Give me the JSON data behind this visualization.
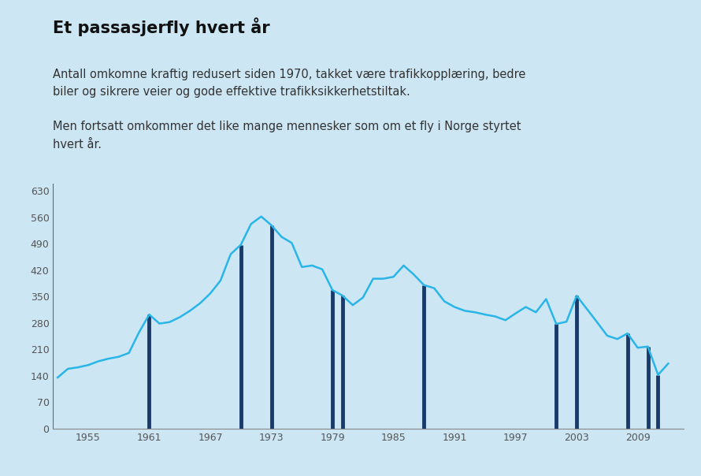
{
  "title": "Et passasjerfly hvert år",
  "subtitle1": "Antall omkomne kraftig redusert siden 1970, takket være trafikkopplæring, bedre\nbiler og sikrere veier og gode effektive trafikksikkerhetstiltak.\n\nMen fortsatt omkommer det like mange mennesker som om et fly i Norge styrtet\nhvert år.",
  "background_color": "#cce6f4",
  "line_color": "#29b5e8",
  "bar_color": "#1a3a6b",
  "years": [
    1952,
    1953,
    1954,
    1955,
    1956,
    1957,
    1958,
    1959,
    1960,
    1961,
    1962,
    1963,
    1964,
    1965,
    1966,
    1967,
    1968,
    1969,
    1970,
    1971,
    1972,
    1973,
    1974,
    1975,
    1976,
    1977,
    1978,
    1979,
    1980,
    1981,
    1982,
    1983,
    1984,
    1985,
    1986,
    1987,
    1988,
    1989,
    1990,
    1991,
    1992,
    1993,
    1994,
    1995,
    1996,
    1997,
    1998,
    1999,
    2000,
    2001,
    2002,
    2003,
    2004,
    2005,
    2006,
    2007,
    2008,
    2009,
    2010,
    2011,
    2012
  ],
  "values": [
    135,
    158,
    162,
    168,
    178,
    185,
    190,
    200,
    255,
    302,
    278,
    282,
    295,
    312,
    332,
    358,
    392,
    462,
    487,
    542,
    562,
    539,
    508,
    492,
    428,
    432,
    422,
    367,
    352,
    327,
    347,
    397,
    397,
    402,
    432,
    408,
    380,
    372,
    337,
    322,
    312,
    308,
    302,
    297,
    287,
    305,
    322,
    308,
    343,
    277,
    283,
    352,
    317,
    282,
    246,
    237,
    252,
    214,
    217,
    142,
    172
  ],
  "bar_years": [
    1961,
    1970,
    1973,
    1979,
    1980,
    1988,
    2001,
    2003,
    2008,
    2010,
    2011
  ],
  "bar_heights": [
    302,
    487,
    539,
    367,
    352,
    380,
    277,
    352,
    252,
    217,
    142
  ],
  "yticks": [
    0,
    70,
    140,
    210,
    280,
    350,
    420,
    490,
    560,
    630
  ],
  "xtick_years": [
    1955,
    1961,
    1967,
    1973,
    1979,
    1985,
    1991,
    1997,
    2003,
    2009
  ],
  "ylim": [
    0,
    650
  ],
  "xlim": [
    1951.5,
    2013.5
  ],
  "title_fontsize": 15,
  "subtitle_fontsize": 10.5
}
